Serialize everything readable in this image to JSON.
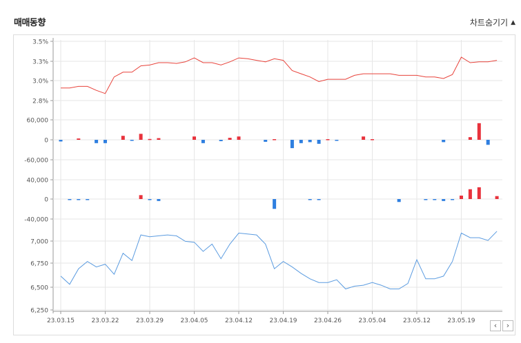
{
  "header": {
    "title": "매매동향",
    "toggle_label": "차트숨기기",
    "toggle_icon": "triangle-up-icon"
  },
  "nav": {
    "prev_label": "‹",
    "next_label": "›"
  },
  "colors": {
    "red": "#e8323c",
    "blue": "#2f7fe0",
    "grid": "#e6e6e6",
    "axis": "#555555",
    "red_line": "#e8423a",
    "blue_line": "#5a9be0"
  },
  "chart_data": [
    {
      "type": "line",
      "panel": "ratio",
      "yticks": [
        "3.5%",
        "3.3%",
        "3.0%",
        "2.8%"
      ],
      "ylim": [
        2.55,
        3.55
      ],
      "values": [
        2.91,
        2.91,
        2.93,
        2.93,
        2.88,
        2.84,
        3.05,
        3.11,
        3.11,
        3.19,
        3.2,
        3.23,
        3.23,
        3.22,
        3.24,
        3.29,
        3.23,
        3.23,
        3.2,
        3.24,
        3.29,
        3.28,
        3.26,
        3.24,
        3.28,
        3.26,
        3.13,
        3.09,
        3.05,
        2.99,
        3.02,
        3.02,
        3.02,
        3.07,
        3.09,
        3.09,
        3.09,
        3.09,
        3.07,
        3.07,
        3.07,
        3.05,
        3.05,
        3.03,
        3.08,
        3.3,
        3.23,
        3.24,
        3.24,
        3.26
      ]
    },
    {
      "type": "bar",
      "panel": "investor-1",
      "yticks": [
        "60,000",
        "0",
        "-60,000"
      ],
      "ylim": [
        -75000,
        80000
      ],
      "values": [
        -5000,
        0,
        4000,
        0,
        -10000,
        -10000,
        0,
        12000,
        -1500,
        18000,
        2500,
        5000,
        0,
        0,
        0,
        10000,
        -10000,
        0,
        -4000,
        6000,
        10000,
        0,
        0,
        -6000,
        2000,
        0,
        -25000,
        -10000,
        -7000,
        -12000,
        2000,
        -3000,
        0,
        0,
        10000,
        2000,
        0,
        0,
        0,
        0,
        0,
        0,
        0,
        -7000,
        0,
        0,
        8000,
        50000,
        -15000,
        0
      ]
    },
    {
      "type": "bar",
      "panel": "investor-2",
      "yticks": [
        "40,000",
        "0",
        "-40,000"
      ],
      "ylim": [
        -50000,
        55000
      ],
      "values": [
        0,
        -2000,
        -2000,
        -1000,
        0,
        0,
        0,
        0,
        0,
        8000,
        -1000,
        -4000,
        0,
        0,
        0,
        0,
        0,
        0,
        0,
        0,
        0,
        0,
        0,
        0,
        -20000,
        0,
        0,
        0,
        -2000,
        -1000,
        0,
        0,
        0,
        0,
        0,
        0,
        0,
        0,
        -6000,
        0,
        0,
        -1000,
        -2000,
        -4000,
        -2000,
        7000,
        20000,
        24000,
        0,
        6000
      ]
    },
    {
      "type": "line",
      "panel": "price",
      "yticks": [
        "7,000",
        "6,750",
        "6,500",
        "6,250"
      ],
      "ylim": [
        6250,
        7110
      ],
      "values": [
        6620,
        6530,
        6700,
        6780,
        6720,
        6750,
        6640,
        6870,
        6790,
        7070,
        7050,
        7060,
        7070,
        7060,
        7000,
        6990,
        6890,
        6970,
        6810,
        6970,
        7090,
        7080,
        7070,
        6970,
        6700,
        6780,
        6720,
        6650,
        6590,
        6550,
        6550,
        6580,
        6480,
        6510,
        6520,
        6550,
        6520,
        6480,
        6480,
        6540,
        6800,
        6590,
        6590,
        6620,
        6780,
        7090,
        7040,
        7040,
        7010,
        7110
      ]
    }
  ],
  "x_labels": [
    "23.03.15",
    "23.03.22",
    "23.03.29",
    "23.04.05",
    "23.04.12",
    "23.04.19",
    "23.04.26",
    "23.05.04",
    "23.05.12",
    "23.05.19"
  ]
}
